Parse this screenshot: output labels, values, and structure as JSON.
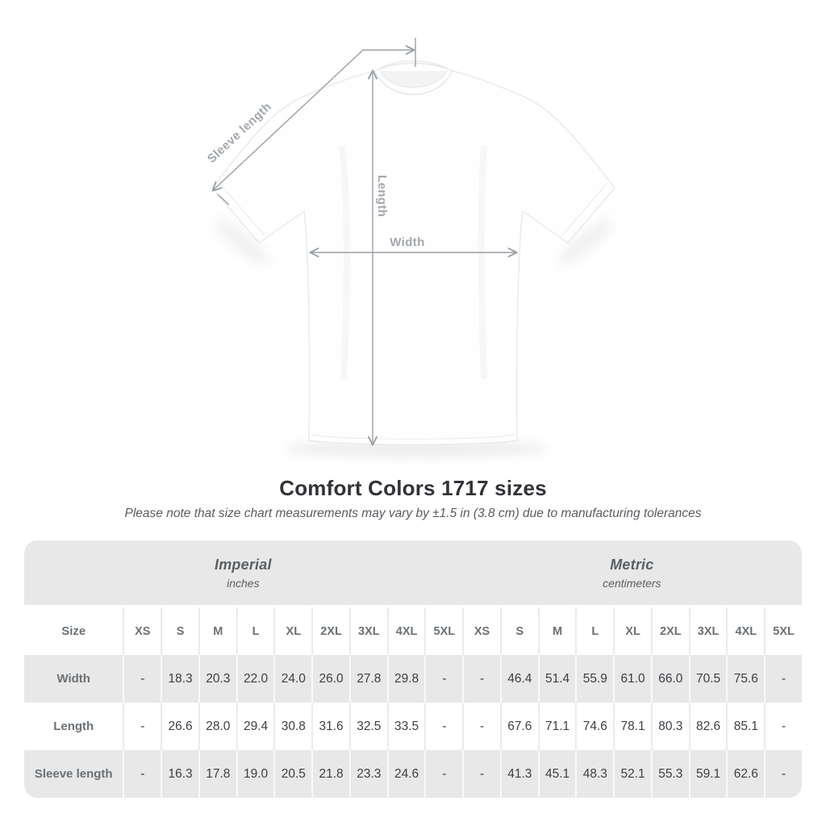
{
  "title": "Comfort Colors 1717 sizes",
  "subtitle": "Please note that size chart measurements may vary by ±1.5 in (3.8 cm) due to manufacturing tolerances",
  "diagram": {
    "labels": {
      "sleeve_length": "Sleeve length",
      "length": "Length",
      "width": "Width"
    }
  },
  "chart_data": {
    "type": "table",
    "title": "Comfort Colors 1717 sizes",
    "note": "Please note that size chart measurements may vary by ±1.5 in (3.8 cm) due to manufacturing tolerances",
    "size_label": "Size",
    "sizes": [
      "XS",
      "S",
      "M",
      "L",
      "XL",
      "2XL",
      "3XL",
      "4XL",
      "5XL"
    ],
    "unit_groups": [
      {
        "label": "Imperial",
        "sublabel": "inches"
      },
      {
        "label": "Metric",
        "sublabel": "centimeters"
      }
    ],
    "rows": [
      {
        "label": "Width",
        "imperial": [
          "-",
          "18.3",
          "20.3",
          "22.0",
          "24.0",
          "26.0",
          "27.8",
          "29.8",
          "-"
        ],
        "metric": [
          "-",
          "46.4",
          "51.4",
          "55.9",
          "61.0",
          "66.0",
          "70.5",
          "75.6",
          "-"
        ]
      },
      {
        "label": "Length",
        "imperial": [
          "-",
          "26.6",
          "28.0",
          "29.4",
          "30.8",
          "31.6",
          "32.5",
          "33.5",
          "-"
        ],
        "metric": [
          "-",
          "67.6",
          "71.1",
          "74.6",
          "78.1",
          "80.3",
          "82.6",
          "85.1",
          "-"
        ]
      },
      {
        "label": "Sleeve length",
        "imperial": [
          "-",
          "16.3",
          "17.8",
          "19.0",
          "20.5",
          "21.8",
          "23.3",
          "24.6",
          "-"
        ],
        "metric": [
          "-",
          "41.3",
          "45.1",
          "48.3",
          "52.1",
          "55.3",
          "59.1",
          "62.6",
          "-"
        ]
      }
    ]
  },
  "colors": {
    "band_gray": "#e8e8e8",
    "row_gray": "#e8e8e8",
    "header_text": "#6b7176",
    "value_text": "#3b3f44",
    "annotation_gray": "#9aa0a5",
    "title_text": "#313338",
    "subtitle_text": "#585c61"
  }
}
